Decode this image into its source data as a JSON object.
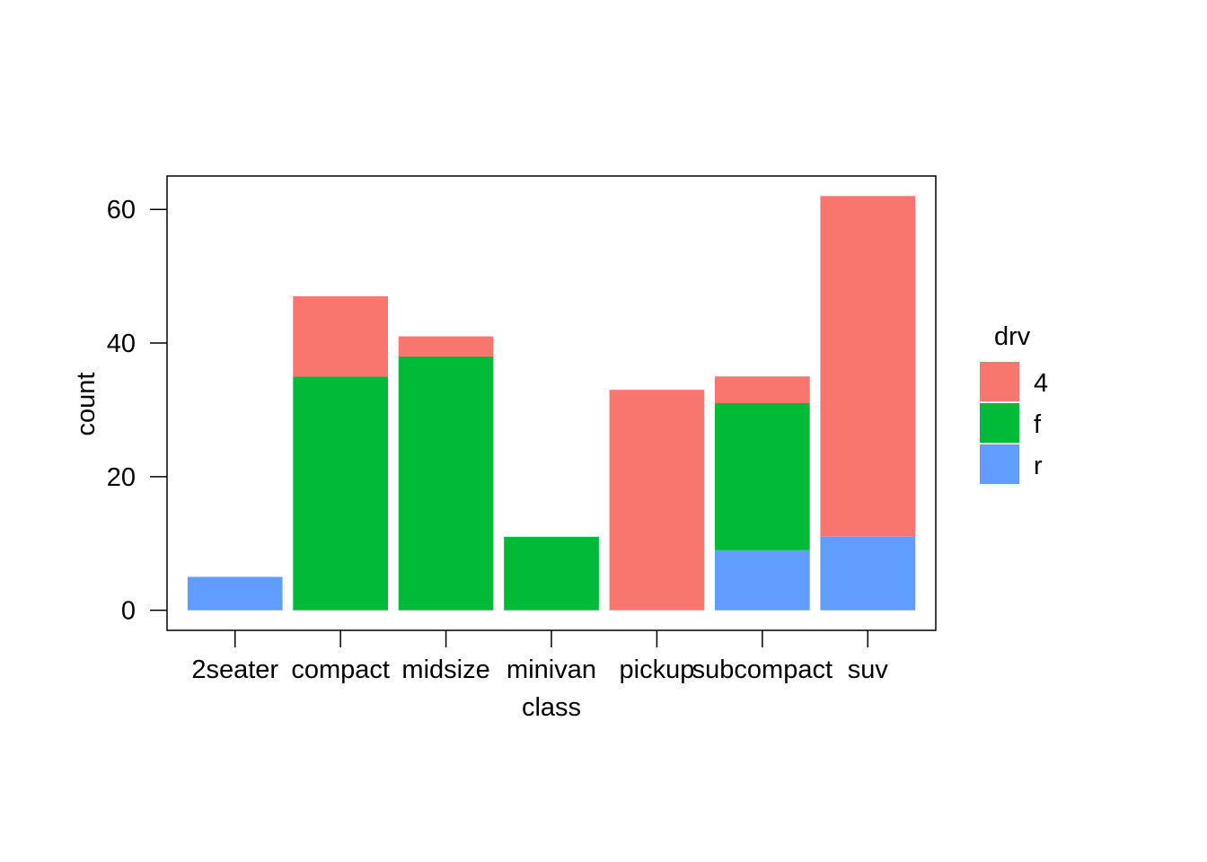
{
  "chart_data": {
    "type": "bar",
    "stacked": true,
    "xlabel": "class",
    "ylabel": "count",
    "categories": [
      "2seater",
      "compact",
      "midsize",
      "minivan",
      "pickup",
      "subcompact",
      "suv"
    ],
    "series": [
      {
        "name": "4",
        "color": "#F8766D",
        "values": [
          0,
          12,
          3,
          0,
          33,
          4,
          51
        ]
      },
      {
        "name": "f",
        "color": "#00BA38",
        "values": [
          0,
          35,
          38,
          11,
          0,
          22,
          0
        ]
      },
      {
        "name": "r",
        "color": "#619CFF",
        "values": [
          5,
          0,
          0,
          0,
          0,
          9,
          11
        ]
      }
    ],
    "stack_order_bottom_to_top": [
      "r",
      "f",
      "4"
    ],
    "ylim": [
      -3,
      65
    ],
    "yticks": [
      "0",
      "20",
      "40",
      "60"
    ],
    "legend": {
      "title": "drv",
      "position": "right"
    },
    "grid": false,
    "panel_border": true
  }
}
